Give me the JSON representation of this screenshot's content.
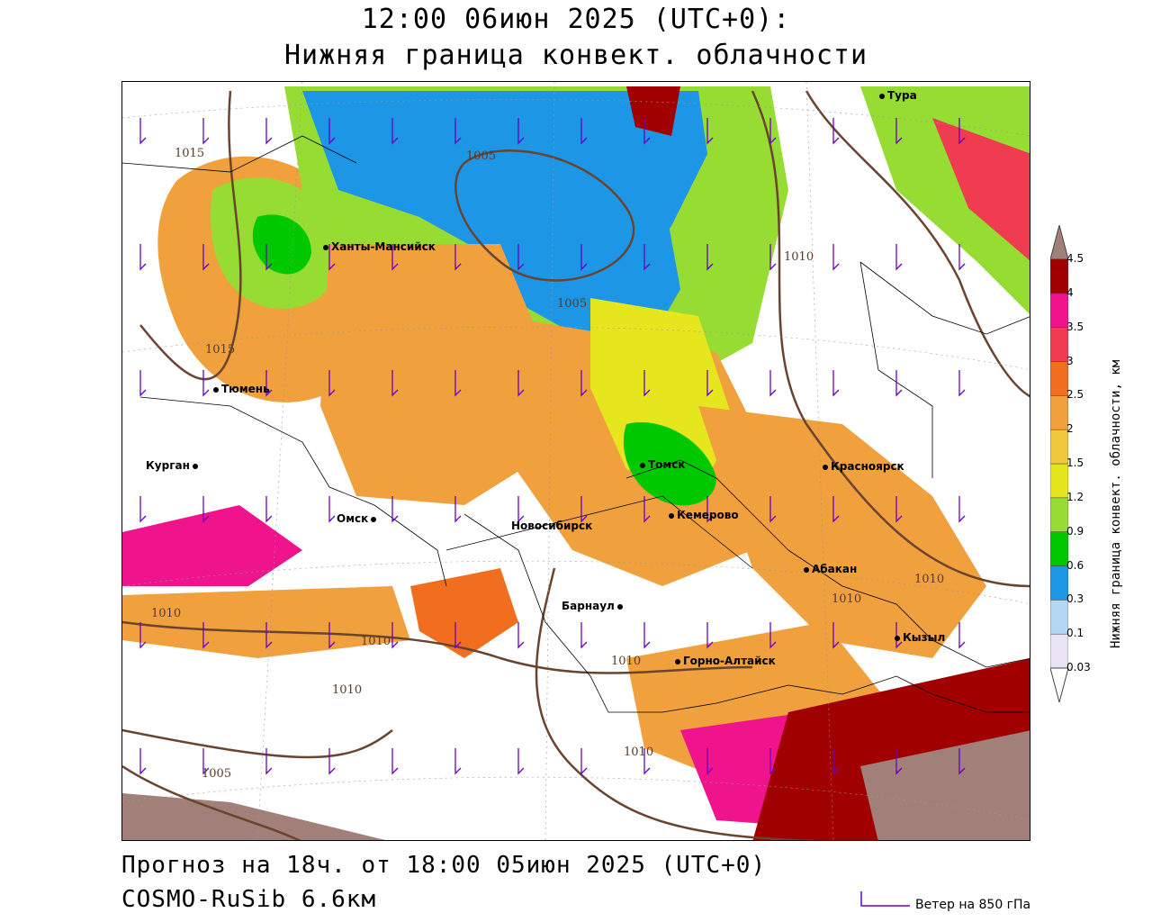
{
  "title_line1": "12:00 06июн 2025 (UTC+0):",
  "title_line2": "Нижняя граница конвект. облачности",
  "footer_line1": "Прогноз на 18ч. от 18:00 05июн 2025 (UTC+0)",
  "footer_line2": "COSMO-RuSib 6.6км",
  "wind_legend": "Ветер на 850 гПа",
  "colorbar": {
    "title": "Нижняя граница конвект. облачности, км",
    "levels": [
      "0.03",
      "0.1",
      "0.3",
      "0.6",
      "0.9",
      "1.2",
      "1.5",
      "2",
      "2.5",
      "3",
      "3.5",
      "4",
      "4.5"
    ],
    "colors": [
      "#e8e4f4",
      "#b4d8f4",
      "#1e96e6",
      "#00c800",
      "#96dc32",
      "#e6e61e",
      "#f0c83c",
      "#f0a03c",
      "#f06e1e",
      "#f03c50",
      "#f0148c",
      "#a00000",
      "#a08078"
    ]
  },
  "cities": [
    {
      "name": "Тура"
    },
    {
      "name": "Ханты-Мансийск"
    },
    {
      "name": "Тюмень"
    },
    {
      "name": "Курган"
    },
    {
      "name": "Омск"
    },
    {
      "name": "Новосибирск"
    },
    {
      "name": "Томск"
    },
    {
      "name": "Кемерово"
    },
    {
      "name": "Красноярск"
    },
    {
      "name": "Абакан"
    },
    {
      "name": "Барнаул"
    },
    {
      "name": "Горно-Алтайск"
    },
    {
      "name": "Кызыл"
    }
  ],
  "isobars": [
    "1015",
    "1005",
    "1010",
    "1015",
    "1005",
    "1010",
    "1010",
    "1010",
    "1010",
    "1010",
    "1010",
    "1010",
    "1005"
  ]
}
